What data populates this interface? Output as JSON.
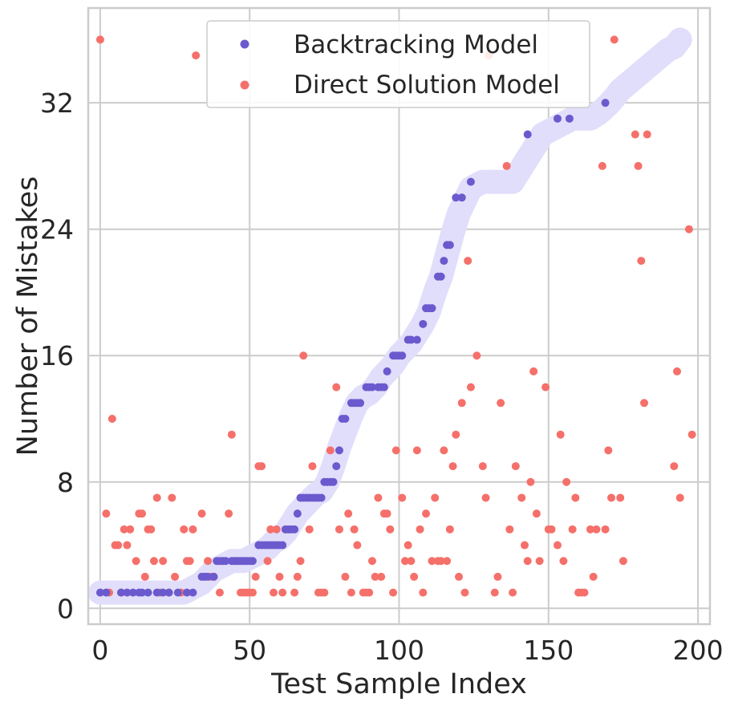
{
  "chart_data": {
    "type": "scatter",
    "xlabel": "Test Sample Index",
    "ylabel": "Number of Mistakes",
    "xlim": [
      -4,
      204
    ],
    "ylim": [
      -1,
      38
    ],
    "xticks": [
      0,
      50,
      100,
      150,
      200
    ],
    "yticks": [
      0,
      8,
      16,
      24,
      32
    ],
    "grid": true,
    "legend_position": "top-center",
    "colors": {
      "backtracking": "#6a5acd",
      "trend": "#e1defb",
      "direct": "#f5706a",
      "grid": "#cccccc",
      "spine": "#cccccc"
    },
    "series": [
      {
        "name": "Backtracking Model",
        "points": [
          [
            0,
            1
          ],
          [
            2,
            1
          ],
          [
            7,
            1
          ],
          [
            9,
            1
          ],
          [
            11,
            1
          ],
          [
            13,
            1
          ],
          [
            14,
            1
          ],
          [
            16,
            1
          ],
          [
            19,
            1
          ],
          [
            21,
            1
          ],
          [
            23,
            1
          ],
          [
            26,
            1
          ],
          [
            29,
            1
          ],
          [
            31,
            1
          ],
          [
            34,
            2
          ],
          [
            35,
            2
          ],
          [
            36,
            2
          ],
          [
            38,
            2
          ],
          [
            39,
            3
          ],
          [
            40,
            3
          ],
          [
            41,
            3
          ],
          [
            42,
            3
          ],
          [
            44,
            3
          ],
          [
            45,
            3
          ],
          [
            46,
            3
          ],
          [
            47,
            3
          ],
          [
            48,
            3
          ],
          [
            49,
            3
          ],
          [
            50,
            3
          ],
          [
            51,
            3
          ],
          [
            53,
            4
          ],
          [
            54,
            4
          ],
          [
            55,
            4
          ],
          [
            56,
            4
          ],
          [
            57,
            4
          ],
          [
            58,
            4
          ],
          [
            59,
            4
          ],
          [
            60,
            4
          ],
          [
            61,
            4
          ],
          [
            62,
            5
          ],
          [
            63,
            5
          ],
          [
            64,
            5
          ],
          [
            65,
            5
          ],
          [
            66,
            6
          ],
          [
            67,
            7
          ],
          [
            68,
            7
          ],
          [
            69,
            7
          ],
          [
            70,
            7
          ],
          [
            71,
            7
          ],
          [
            72,
            7
          ],
          [
            73,
            7
          ],
          [
            74,
            7
          ],
          [
            75,
            8
          ],
          [
            76,
            8
          ],
          [
            77,
            8
          ],
          [
            78,
            8
          ],
          [
            79,
            9
          ],
          [
            80,
            10
          ],
          [
            81,
            12
          ],
          [
            82,
            12
          ],
          [
            84,
            13
          ],
          [
            85,
            13
          ],
          [
            86,
            13
          ],
          [
            87,
            13
          ],
          [
            89,
            14
          ],
          [
            90,
            14
          ],
          [
            91,
            14
          ],
          [
            93,
            14
          ],
          [
            94,
            14
          ],
          [
            95,
            14
          ],
          [
            96,
            15
          ],
          [
            98,
            16
          ],
          [
            99,
            16
          ],
          [
            100,
            16
          ],
          [
            101,
            16
          ],
          [
            103,
            17
          ],
          [
            104,
            17
          ],
          [
            106,
            17
          ],
          [
            108,
            18
          ],
          [
            109,
            19
          ],
          [
            110,
            19
          ],
          [
            111,
            19
          ],
          [
            113,
            21
          ],
          [
            114,
            21
          ],
          [
            115,
            22
          ],
          [
            116,
            23
          ],
          [
            117,
            23
          ],
          [
            119,
            26
          ],
          [
            121,
            26
          ],
          [
            124,
            27
          ],
          [
            143,
            30
          ],
          [
            153,
            31
          ],
          [
            157,
            31
          ],
          [
            169,
            32
          ]
        ]
      },
      {
        "name": "Direct Solution Model",
        "points": [
          [
            0,
            36
          ],
          [
            2,
            6
          ],
          [
            3,
            1
          ],
          [
            4,
            12
          ],
          [
            5,
            4
          ],
          [
            6,
            4
          ],
          [
            7,
            1
          ],
          [
            8,
            5
          ],
          [
            9,
            4
          ],
          [
            10,
            5
          ],
          [
            12,
            3
          ],
          [
            13,
            6
          ],
          [
            14,
            6
          ],
          [
            15,
            2
          ],
          [
            16,
            5
          ],
          [
            17,
            5
          ],
          [
            18,
            3
          ],
          [
            19,
            7
          ],
          [
            20,
            1
          ],
          [
            21,
            3
          ],
          [
            23,
            1
          ],
          [
            24,
            7
          ],
          [
            25,
            2
          ],
          [
            27,
            1
          ],
          [
            28,
            5
          ],
          [
            29,
            3
          ],
          [
            30,
            3
          ],
          [
            31,
            5
          ],
          [
            32,
            35
          ],
          [
            34,
            6
          ],
          [
            36,
            3
          ],
          [
            37,
            2
          ],
          [
            38,
            2
          ],
          [
            40,
            1
          ],
          [
            41,
            3
          ],
          [
            43,
            6
          ],
          [
            44,
            11
          ],
          [
            45,
            3
          ],
          [
            46,
            3
          ],
          [
            47,
            1
          ],
          [
            48,
            1
          ],
          [
            49,
            1
          ],
          [
            50,
            1
          ],
          [
            51,
            1
          ],
          [
            52,
            2
          ],
          [
            53,
            9
          ],
          [
            54,
            9
          ],
          [
            56,
            3
          ],
          [
            57,
            5
          ],
          [
            58,
            1
          ],
          [
            59,
            5
          ],
          [
            60,
            2
          ],
          [
            61,
            1
          ],
          [
            62,
            5
          ],
          [
            63,
            5
          ],
          [
            65,
            1
          ],
          [
            66,
            2
          ],
          [
            67,
            3
          ],
          [
            68,
            16
          ],
          [
            70,
            5
          ],
          [
            71,
            9
          ],
          [
            73,
            1
          ],
          [
            74,
            1
          ],
          [
            75,
            1
          ],
          [
            77,
            10
          ],
          [
            79,
            14
          ],
          [
            80,
            5
          ],
          [
            82,
            2
          ],
          [
            83,
            6
          ],
          [
            84,
            1
          ],
          [
            85,
            5
          ],
          [
            86,
            4
          ],
          [
            88,
            1
          ],
          [
            89,
            1
          ],
          [
            90,
            1
          ],
          [
            91,
            3
          ],
          [
            92,
            2
          ],
          [
            93,
            7
          ],
          [
            94,
            2
          ],
          [
            95,
            6
          ],
          [
            96,
            6
          ],
          [
            97,
            5
          ],
          [
            98,
            1
          ],
          [
            99,
            10
          ],
          [
            101,
            7
          ],
          [
            102,
            3
          ],
          [
            103,
            4
          ],
          [
            104,
            3
          ],
          [
            105,
            2
          ],
          [
            106,
            10
          ],
          [
            107,
            5
          ],
          [
            108,
            1
          ],
          [
            109,
            6
          ],
          [
            111,
            3
          ],
          [
            112,
            7
          ],
          [
            113,
            3
          ],
          [
            114,
            3
          ],
          [
            115,
            10
          ],
          [
            116,
            3
          ],
          [
            117,
            5
          ],
          [
            118,
            9
          ],
          [
            119,
            11
          ],
          [
            120,
            2
          ],
          [
            121,
            13
          ],
          [
            122,
            1
          ],
          [
            123,
            22
          ],
          [
            124,
            14
          ],
          [
            126,
            16
          ],
          [
            128,
            9
          ],
          [
            129,
            7
          ],
          [
            130,
            35
          ],
          [
            132,
            1
          ],
          [
            133,
            2
          ],
          [
            134,
            13
          ],
          [
            136,
            28
          ],
          [
            137,
            5
          ],
          [
            138,
            1
          ],
          [
            139,
            9
          ],
          [
            141,
            7
          ],
          [
            142,
            4
          ],
          [
            143,
            3
          ],
          [
            144,
            8
          ],
          [
            145,
            15
          ],
          [
            146,
            6
          ],
          [
            147,
            3
          ],
          [
            149,
            14
          ],
          [
            150,
            5
          ],
          [
            151,
            5
          ],
          [
            153,
            4
          ],
          [
            154,
            11
          ],
          [
            155,
            3
          ],
          [
            156,
            8
          ],
          [
            158,
            5
          ],
          [
            159,
            7
          ],
          [
            160,
            1
          ],
          [
            161,
            1
          ],
          [
            162,
            1
          ],
          [
            164,
            5
          ],
          [
            165,
            2
          ],
          [
            166,
            5
          ],
          [
            168,
            28
          ],
          [
            169,
            5
          ],
          [
            170,
            10
          ],
          [
            171,
            7
          ],
          [
            172,
            36
          ],
          [
            174,
            7
          ],
          [
            175,
            3
          ],
          [
            179,
            30
          ],
          [
            180,
            28
          ],
          [
            181,
            22
          ],
          [
            182,
            13
          ],
          [
            183,
            30
          ],
          [
            192,
            9
          ],
          [
            193,
            15
          ],
          [
            194,
            7
          ],
          [
            197,
            24
          ],
          [
            198,
            11
          ]
        ]
      }
    ]
  }
}
